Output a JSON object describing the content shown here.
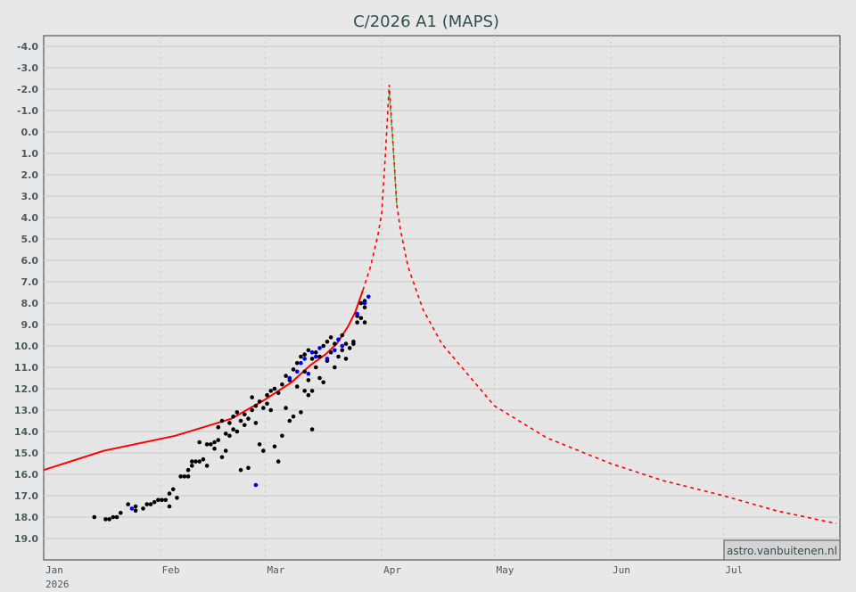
{
  "chart_data": {
    "type": "scatter",
    "title": "C/2026 A1 (MAPS)",
    "xlabel": "",
    "ylabel": "",
    "x_type": "date",
    "xlim": [
      "2026-01-01",
      "2026-08-01"
    ],
    "ylim": [
      20.0,
      -4.5
    ],
    "y_reversed": true,
    "yticks": [
      "-4.0",
      "-3.0",
      "-2.0",
      "-1.0",
      "0.0",
      "1.0",
      "2.0",
      "3.0",
      "4.0",
      "5.0",
      "6.0",
      "7.0",
      "8.0",
      "9.0",
      "10.0",
      "11.0",
      "12.0",
      "13.0",
      "14.0",
      "15.0",
      "16.0",
      "17.0",
      "18.0",
      "19.0"
    ],
    "xticks": [
      {
        "date": "2026-01-01",
        "label": "Jan",
        "sublabel": "2026"
      },
      {
        "date": "2026-02-01",
        "label": "Feb"
      },
      {
        "date": "2026-03-01",
        "label": "Mar"
      },
      {
        "date": "2026-04-01",
        "label": "Apr"
      },
      {
        "date": "2026-05-01",
        "label": "May"
      },
      {
        "date": "2026-06-01",
        "label": "Jun"
      },
      {
        "date": "2026-07-01",
        "label": "Jul"
      }
    ],
    "grid": true,
    "watermark": "astro.vanbuitenen.nl",
    "colors": {
      "observations": "#000000",
      "observations_alt": "#0000ff",
      "fit": "#ff0000",
      "prediction": "#ff0000",
      "prediction_alt": "#22aa22",
      "background": "#e8e8e8"
    },
    "fit_curve": [
      [
        "2026-01-01",
        15.8
      ],
      [
        "2026-01-17",
        14.9
      ],
      [
        "2026-02-05",
        14.2
      ],
      [
        "2026-02-20",
        13.4
      ],
      [
        "2026-03-01",
        12.5
      ],
      [
        "2026-03-08",
        11.7
      ],
      [
        "2026-03-13",
        10.9
      ],
      [
        "2026-03-17",
        10.4
      ],
      [
        "2026-03-20",
        9.9
      ],
      [
        "2026-03-23",
        9.1
      ],
      [
        "2026-03-25",
        8.4
      ],
      [
        "2026-03-27",
        7.4
      ]
    ],
    "prediction_curve": [
      [
        "2026-03-27",
        7.4
      ],
      [
        "2026-03-29",
        6.3
      ],
      [
        "2026-03-31",
        4.8
      ],
      [
        "2026-04-01",
        3.8
      ],
      [
        "2026-04-02",
        1.0
      ],
      [
        "2026-04-03",
        -2.2
      ],
      [
        "2026-04-04",
        0.5
      ],
      [
        "2026-04-05",
        3.4
      ],
      [
        "2026-04-06",
        4.6
      ],
      [
        "2026-04-08",
        6.3
      ],
      [
        "2026-04-12",
        8.3
      ],
      [
        "2026-04-17",
        9.9
      ],
      [
        "2026-05-01",
        12.8
      ],
      [
        "2026-05-15",
        14.3
      ],
      [
        "2026-06-01",
        15.5
      ],
      [
        "2026-06-15",
        16.3
      ],
      [
        "2026-07-01",
        17.0
      ],
      [
        "2026-07-15",
        17.7
      ],
      [
        "2026-07-31",
        18.3
      ]
    ],
    "prediction_alt_curve": [
      [
        "2026-04-03",
        -1.8
      ],
      [
        "2026-04-04",
        0.5
      ],
      [
        "2026-04-05",
        3.5
      ]
    ],
    "observations": [
      [
        "2026-01-14",
        18.0
      ],
      [
        "2026-01-17",
        18.1
      ],
      [
        "2026-01-18",
        18.1
      ],
      [
        "2026-01-19",
        18.0
      ],
      [
        "2026-01-20",
        18.0
      ],
      [
        "2026-01-21",
        17.8
      ],
      [
        "2026-01-23",
        17.4
      ],
      [
        "2026-01-25",
        17.7
      ],
      [
        "2026-01-25",
        17.5
      ],
      [
        "2026-01-27",
        17.6
      ],
      [
        "2026-01-28",
        17.4
      ],
      [
        "2026-01-29",
        17.4
      ],
      [
        "2026-01-30",
        17.3
      ],
      [
        "2026-01-31",
        17.2
      ],
      [
        "2026-02-01",
        17.2
      ],
      [
        "2026-02-02",
        17.2
      ],
      [
        "2026-02-03",
        17.5
      ],
      [
        "2026-02-03",
        16.9
      ],
      [
        "2026-02-04",
        16.7
      ],
      [
        "2026-02-05",
        17.1
      ],
      [
        "2026-02-06",
        16.1
      ],
      [
        "2026-02-07",
        16.1
      ],
      [
        "2026-02-08",
        15.8
      ],
      [
        "2026-02-08",
        16.1
      ],
      [
        "2026-02-09",
        15.4
      ],
      [
        "2026-02-09",
        15.6
      ],
      [
        "2026-02-10",
        15.4
      ],
      [
        "2026-02-11",
        15.4
      ],
      [
        "2026-02-11",
        14.5
      ],
      [
        "2026-02-12",
        15.3
      ],
      [
        "2026-02-13",
        15.6
      ],
      [
        "2026-02-13",
        14.6
      ],
      [
        "2026-02-14",
        14.6
      ],
      [
        "2026-02-15",
        14.5
      ],
      [
        "2026-02-15",
        14.8
      ],
      [
        "2026-02-16",
        14.4
      ],
      [
        "2026-02-16",
        13.8
      ],
      [
        "2026-02-17",
        15.2
      ],
      [
        "2026-02-17",
        13.5
      ],
      [
        "2026-02-18",
        14.1
      ],
      [
        "2026-02-18",
        14.9
      ],
      [
        "2026-02-19",
        13.6
      ],
      [
        "2026-02-19",
        14.2
      ],
      [
        "2026-02-20",
        13.3
      ],
      [
        "2026-02-20",
        13.9
      ],
      [
        "2026-02-21",
        13.1
      ],
      [
        "2026-02-21",
        14.0
      ],
      [
        "2026-02-22",
        13.5
      ],
      [
        "2026-02-22",
        15.8
      ],
      [
        "2026-02-23",
        13.7
      ],
      [
        "2026-02-23",
        13.2
      ],
      [
        "2026-02-24",
        15.7
      ],
      [
        "2026-02-24",
        13.4
      ],
      [
        "2026-02-25",
        12.4
      ],
      [
        "2026-02-25",
        13.0
      ],
      [
        "2026-02-26",
        12.8
      ],
      [
        "2026-02-26",
        13.6
      ],
      [
        "2026-02-27",
        12.6
      ],
      [
        "2026-02-27",
        14.6
      ],
      [
        "2026-02-28",
        12.9
      ],
      [
        "2026-02-28",
        14.9
      ],
      [
        "2026-03-01",
        12.3
      ],
      [
        "2026-03-01",
        12.7
      ],
      [
        "2026-03-02",
        12.1
      ],
      [
        "2026-03-02",
        13.0
      ],
      [
        "2026-03-03",
        12.0
      ],
      [
        "2026-03-03",
        14.7
      ],
      [
        "2026-03-04",
        12.2
      ],
      [
        "2026-03-04",
        15.4
      ],
      [
        "2026-03-05",
        11.8
      ],
      [
        "2026-03-05",
        14.2
      ],
      [
        "2026-03-06",
        11.4
      ],
      [
        "2026-03-06",
        12.9
      ],
      [
        "2026-03-07",
        11.6
      ],
      [
        "2026-03-07",
        13.5
      ],
      [
        "2026-03-08",
        11.1
      ],
      [
        "2026-03-08",
        13.3
      ],
      [
        "2026-03-09",
        10.8
      ],
      [
        "2026-03-09",
        11.9
      ],
      [
        "2026-03-10",
        10.5
      ],
      [
        "2026-03-10",
        13.1
      ],
      [
        "2026-03-11",
        10.4
      ],
      [
        "2026-03-11",
        11.2
      ],
      [
        "2026-03-11",
        12.1
      ],
      [
        "2026-03-12",
        10.2
      ],
      [
        "2026-03-12",
        11.6
      ],
      [
        "2026-03-12",
        12.3
      ],
      [
        "2026-03-13",
        10.6
      ],
      [
        "2026-03-13",
        13.9
      ],
      [
        "2026-03-13",
        12.1
      ],
      [
        "2026-03-14",
        10.3
      ],
      [
        "2026-03-14",
        11.0
      ],
      [
        "2026-03-15",
        10.5
      ],
      [
        "2026-03-15",
        11.5
      ],
      [
        "2026-03-16",
        10.0
      ],
      [
        "2026-03-16",
        11.7
      ],
      [
        "2026-03-17",
        9.8
      ],
      [
        "2026-03-17",
        10.7
      ],
      [
        "2026-03-18",
        9.6
      ],
      [
        "2026-03-18",
        10.3
      ],
      [
        "2026-03-19",
        9.9
      ],
      [
        "2026-03-19",
        11.0
      ],
      [
        "2026-03-20",
        9.7
      ],
      [
        "2026-03-20",
        10.5
      ],
      [
        "2026-03-21",
        9.5
      ],
      [
        "2026-03-21",
        10.2
      ],
      [
        "2026-03-22",
        9.9
      ],
      [
        "2026-03-22",
        10.6
      ],
      [
        "2026-03-23",
        10.1
      ],
      [
        "2026-03-24",
        9.8
      ],
      [
        "2026-03-24",
        9.9
      ],
      [
        "2026-03-25",
        8.6
      ],
      [
        "2026-03-25",
        8.9
      ],
      [
        "2026-03-26",
        8.0
      ],
      [
        "2026-03-26",
        8.7
      ],
      [
        "2026-03-27",
        7.9
      ],
      [
        "2026-03-27",
        8.9
      ],
      [
        "2026-03-27",
        8.2
      ]
    ],
    "observations_alt": [
      [
        "2026-01-24",
        17.6
      ],
      [
        "2026-02-26",
        16.5
      ],
      [
        "2026-03-07",
        11.5
      ],
      [
        "2026-03-09",
        11.2
      ],
      [
        "2026-03-10",
        10.8
      ],
      [
        "2026-03-11",
        10.6
      ],
      [
        "2026-03-12",
        11.3
      ],
      [
        "2026-03-13",
        10.3
      ],
      [
        "2026-03-14",
        10.5
      ],
      [
        "2026-03-15",
        10.1
      ],
      [
        "2026-03-17",
        10.6
      ],
      [
        "2026-03-19",
        10.2
      ],
      [
        "2026-03-20",
        9.7
      ],
      [
        "2026-03-21",
        10.0
      ],
      [
        "2026-03-25",
        8.5
      ],
      [
        "2026-03-27",
        8.0
      ],
      [
        "2026-03-28",
        7.7
      ]
    ]
  }
}
